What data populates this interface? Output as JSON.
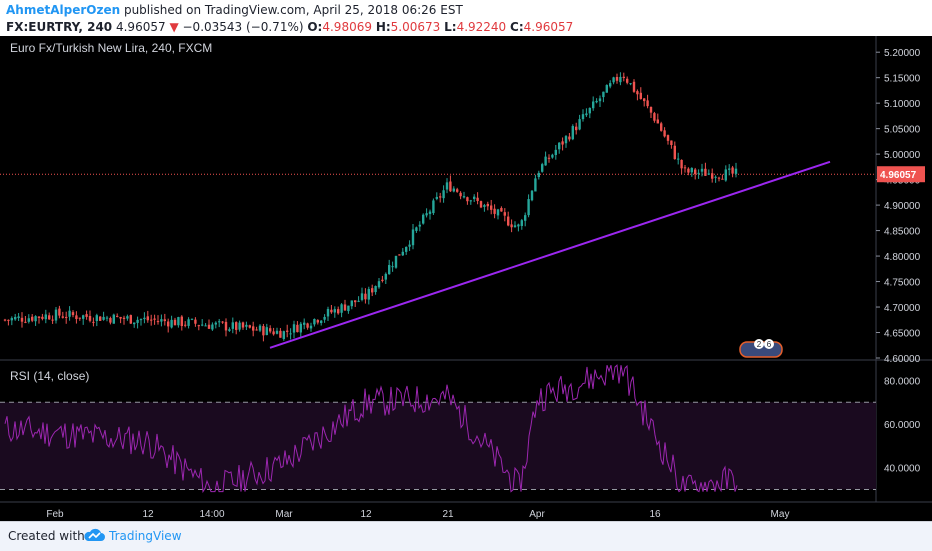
{
  "header": {
    "author": "AhmetAlperOzen",
    "published_text": "published on TradingView.com, April 25, 2018 06:26 EST",
    "symbol": "FX:EURTRY, 240",
    "last": "4.96057",
    "change_arrow": "▼",
    "change": "−0.03543 (−0.71%)",
    "open_label": "O:",
    "open": "4.98069",
    "high_label": "H:",
    "high": "5.00673",
    "low_label": "L:",
    "low": "4.92240",
    "close_label": "C:",
    "close": "4.96057"
  },
  "footer": {
    "created_with": "Created with",
    "brand": "TradingView"
  },
  "chart_data": {
    "type": "candlestick",
    "title": "Euro Fx/Turkish New Lira, 240, FXCM",
    "price_axis": {
      "ylim": [
        4.6,
        5.22
      ],
      "tick_labels": [
        "5.20000",
        "5.15000",
        "5.10000",
        "5.05000",
        "5.00000",
        "4.95000",
        "4.90000",
        "4.85000",
        "4.80000",
        "4.75000",
        "4.70000",
        "4.65000",
        "4.60000"
      ],
      "last_price_label": "4.96057",
      "last_price": 4.96057
    },
    "time_axis": {
      "tick_labels": [
        "Feb",
        "12",
        "14:00",
        "Mar",
        "12",
        "21",
        "Apr",
        "16",
        "May"
      ]
    },
    "price_path": [
      {
        "t": "Feb start",
        "close": 4.675
      },
      {
        "t": "Feb",
        "close": 4.685
      },
      {
        "t": "Feb 12",
        "close": 4.675
      },
      {
        "t": "14:00",
        "close": 4.665
      },
      {
        "t": "Mar",
        "close": 4.65
      },
      {
        "t": "Mar 12",
        "close": 4.72
      },
      {
        "t": "Mar mid",
        "close": 4.82
      },
      {
        "t": "Mar 21",
        "close": 4.94
      },
      {
        "t": "late Mar",
        "close": 4.855
      },
      {
        "t": "Apr",
        "close": 4.965
      },
      {
        "t": "Apr 11",
        "close": 5.16
      },
      {
        "t": "Apr 16",
        "close": 5.07
      },
      {
        "t": "Apr 18",
        "close": 4.965
      },
      {
        "t": "Apr 25",
        "close": 4.96057
      }
    ],
    "trendline": {
      "from": {
        "t": "Mar 1",
        "price": 4.62
      },
      "to": {
        "t": "May 2",
        "price": 4.985
      },
      "color": "#9c27f0"
    },
    "rsi": {
      "label": "RSI (14, close)",
      "ylim": [
        27,
        88
      ],
      "tick_labels": [
        "80.0000",
        "60.0000",
        "40.0000"
      ],
      "bands": [
        70,
        30
      ],
      "path": [
        {
          "t": "Feb start",
          "value": 58
        },
        {
          "t": "Feb 12",
          "value": 52
        },
        {
          "t": "14:00",
          "value": 30
        },
        {
          "t": "Mar",
          "value": 42
        },
        {
          "t": "Mar 12",
          "value": 70
        },
        {
          "t": "Mar 21",
          "value": 72
        },
        {
          "t": "late Mar",
          "value": 30
        },
        {
          "t": "Apr",
          "value": 72
        },
        {
          "t": "Apr 11",
          "value": 86
        },
        {
          "t": "Apr 16",
          "value": 55
        },
        {
          "t": "Apr 18",
          "value": 30
        },
        {
          "t": "Apr 25",
          "value": 35
        }
      ]
    },
    "colors": {
      "up": "#26a69a",
      "down": "#ef5350",
      "rsi_line": "#9c27b0",
      "rsi_fill": "#1a0a1f",
      "last_price_bg": "#ef5350"
    },
    "badges": [
      "2",
      "6"
    ]
  }
}
